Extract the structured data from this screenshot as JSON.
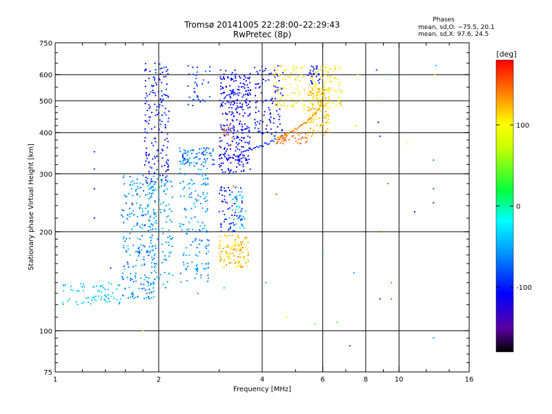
{
  "chart_data": {
    "type": "scatter",
    "title": "Tromsø 20141005 22:28:00–22:29:43",
    "subtitle": "RwPretec (8p)",
    "xlabel": "Frequency [MHz]",
    "ylabel": "Stationary phase Virtual Height [km]",
    "xscale": "log",
    "yscale": "log",
    "xlim": [
      1,
      16
    ],
    "ylim": [
      75,
      750
    ],
    "x_ticks": [
      1,
      2,
      4,
      6,
      8,
      10,
      16
    ],
    "x_tick_labels": [
      "1",
      "2",
      "4",
      "6",
      "8",
      "10",
      "16"
    ],
    "x_minor_ticks": [
      1.2,
      1.4,
      1.6,
      1.8,
      3,
      5,
      7,
      9,
      12,
      14
    ],
    "y_ticks": [
      75,
      100,
      200,
      300,
      400,
      500,
      600,
      750
    ],
    "y_tick_labels": [
      "75",
      "100",
      "200",
      "300",
      "400",
      "500",
      "600",
      "750"
    ],
    "grid": true,
    "grid_x": [
      2,
      4,
      6,
      8,
      10
    ],
    "grid_y": [
      100,
      200,
      300,
      400,
      500,
      600
    ],
    "phase_stats": {
      "heading": "Phases",
      "line_o": "mean, sd,O: −75.5, 20.1",
      "line_x": "mean, sd,X:  97.6, 24.5"
    },
    "colorbar": {
      "label": "[deg]",
      "min": -180,
      "max": 180,
      "ticks": [
        100,
        0,
        -100
      ],
      "tick_labels": [
        "100",
        "0",
        "-100"
      ]
    },
    "clusters": [
      {
        "x": [
          1.05,
          1.55
        ],
        "y": [
          120,
          140
        ],
        "phase": [
          -50,
          -30
        ],
        "count": 70,
        "seed": 1
      },
      {
        "x": [
          1.55,
          1.95
        ],
        "y": [
          125,
          300
        ],
        "phase": [
          -85,
          -35
        ],
        "count": 220,
        "seed": 2
      },
      {
        "x": [
          1.82,
          2.15
        ],
        "y": [
          280,
          650
        ],
        "phase": [
          -125,
          -80
        ],
        "count": 170,
        "seed": 3
      },
      {
        "x": [
          1.85,
          2.2
        ],
        "y": [
          135,
          300
        ],
        "phase": [
          -65,
          -40
        ],
        "count": 130,
        "seed": 4
      },
      {
        "x": [
          2.3,
          2.8
        ],
        "y": [
          140,
          360
        ],
        "phase": [
          -80,
          -35
        ],
        "count": 170,
        "seed": 5
      },
      {
        "x": [
          2.3,
          2.9
        ],
        "y": [
          320,
          360
        ],
        "phase": [
          -95,
          -45
        ],
        "count": 60,
        "seed": 6
      },
      {
        "x": [
          2.4,
          2.85
        ],
        "y": [
          480,
          640
        ],
        "phase": [
          -100,
          -70
        ],
        "count": 35,
        "seed": 7
      },
      {
        "x": [
          3.0,
          3.7
        ],
        "y": [
          300,
          620
        ],
        "phase": [
          -125,
          -95
        ],
        "count": 300,
        "seed": 8
      },
      {
        "x": [
          3.0,
          3.5
        ],
        "y": [
          200,
          275
        ],
        "phase": [
          -115,
          -85
        ],
        "count": 60,
        "seed": 9
      },
      {
        "x": [
          3.0,
          3.65
        ],
        "y": [
          155,
          195
        ],
        "phase": [
          100,
          140
        ],
        "count": 110,
        "seed": 10
      },
      {
        "x": [
          3.2,
          3.6
        ],
        "y": [
          200,
          270
        ],
        "phase": [
          -55,
          -20
        ],
        "count": 35,
        "seed": 11
      },
      {
        "x": [
          3.05,
          3.3
        ],
        "y": [
          360,
          420
        ],
        "phase": [
          140,
          160
        ],
        "count": 12,
        "seed": 12
      },
      {
        "x": [
          3.8,
          4.6
        ],
        "y": [
          390,
          640
        ],
        "phase": [
          -120,
          -90
        ],
        "count": 100,
        "seed": 13
      },
      {
        "x": [
          4.3,
          5.3
        ],
        "y": [
          470,
          640
        ],
        "phase": [
          90,
          120
        ],
        "count": 70,
        "seed": 14
      },
      {
        "x": [
          4.4,
          5.4
        ],
        "y": [
          370,
          400
        ],
        "phase": [
          140,
          155
        ],
        "count": 40,
        "seed": 15
      },
      {
        "x": [
          5.4,
          6.3
        ],
        "y": [
          390,
          560
        ],
        "phase": [
          100,
          140
        ],
        "count": 120,
        "seed": 16
      },
      {
        "x": [
          5.5,
          6.8
        ],
        "y": [
          480,
          640
        ],
        "phase": [
          95,
          125
        ],
        "count": 90,
        "seed": 17
      },
      {
        "x": [
          5.4,
          5.9
        ],
        "y": [
          560,
          640
        ],
        "phase": [
          -115,
          -90
        ],
        "count": 25,
        "seed": 18
      }
    ],
    "curve_points": {
      "x": [
        3.15,
        3.4,
        3.65,
        3.9,
        4.15,
        4.4,
        4.65,
        4.9,
        5.15,
        5.4,
        5.6,
        5.8,
        6.0
      ],
      "y": [
        335,
        342,
        352,
        362,
        372,
        382,
        392,
        404,
        418,
        432,
        448,
        468,
        490
      ],
      "phase": [
        -110,
        -105,
        -100,
        -95,
        -90,
        130,
        135,
        140,
        140,
        135,
        130,
        125,
        120
      ]
    },
    "sparse_points": {
      "x": [
        1.3,
        1.3,
        1.3,
        1.3,
        1.45,
        1.8,
        2.6,
        3.1,
        3.3,
        4.1,
        4.4,
        4.7,
        5.2,
        5.3,
        5.7,
        6.0,
        6.6,
        7.2,
        7.4,
        7.5,
        7.6,
        8.6,
        8.7,
        8.7,
        8.8,
        8.8,
        8.8,
        9.3,
        9.4,
        9.5,
        9.5,
        10.6,
        11.1,
        12.6,
        12.6,
        12.6,
        12.6,
        12.7,
        12.8
      ],
      "y": [
        350,
        310,
        270,
        220,
        155,
        100,
        130,
        135,
        275,
        140,
        260,
        110,
        600,
        540,
        105,
        170,
        106,
        90,
        150,
        420,
        600,
        620,
        500,
        430,
        390,
        200,
        125,
        280,
        600,
        140,
        125,
        370,
        230,
        330,
        270,
        245,
        95,
        600,
        640
      ],
      "phase": [
        -95,
        -85,
        -110,
        -105,
        -95,
        110,
        155,
        -40,
        155,
        -50,
        160,
        110,
        100,
        120,
        35,
        -60,
        35,
        -85,
        -55,
        110,
        115,
        -95,
        150,
        -140,
        -120,
        160,
        -140,
        155,
        -50,
        150,
        150,
        100,
        -105,
        -70,
        -80,
        -95,
        -50,
        100,
        -45
      ]
    }
  }
}
